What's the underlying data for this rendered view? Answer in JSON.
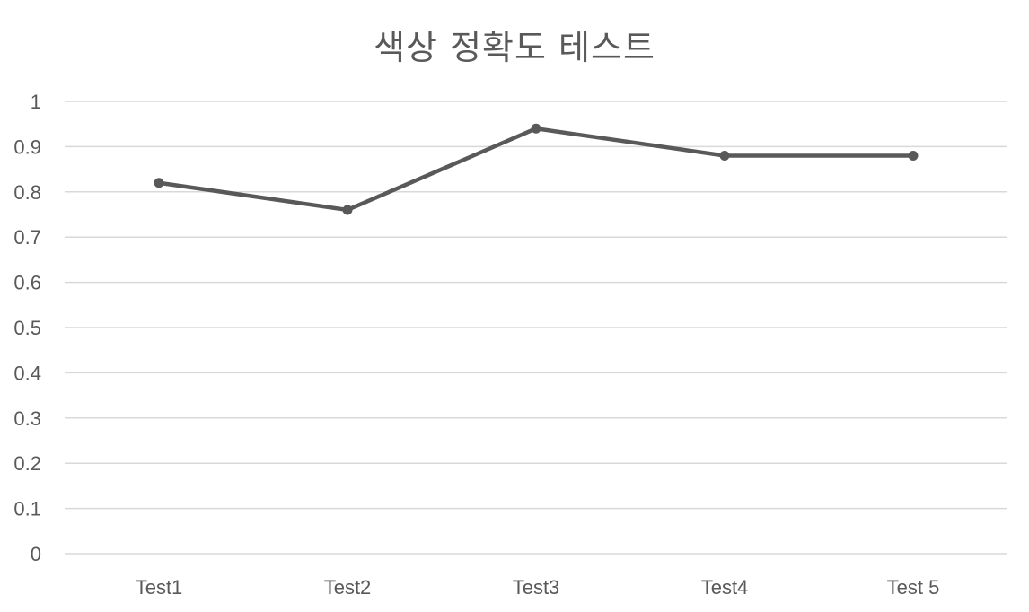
{
  "chart_data": {
    "type": "line",
    "title": "색상 정확도 테스트",
    "categories": [
      "Test1",
      "Test2",
      "Test3",
      "Test4",
      "Test 5"
    ],
    "series": [
      {
        "values": [
          0.82,
          0.76,
          0.94,
          0.88,
          0.88
        ]
      }
    ],
    "ylim": [
      0,
      1
    ],
    "yticks": [
      "0",
      "0.1",
      "0.2",
      "0.3",
      "0.4",
      "0.5",
      "0.6",
      "0.7",
      "0.8",
      "0.9",
      "1"
    ],
    "grid": true,
    "legend": "none",
    "colors": {
      "line": "#595959",
      "grid": "#d9d9d9",
      "text": "#595959"
    }
  }
}
